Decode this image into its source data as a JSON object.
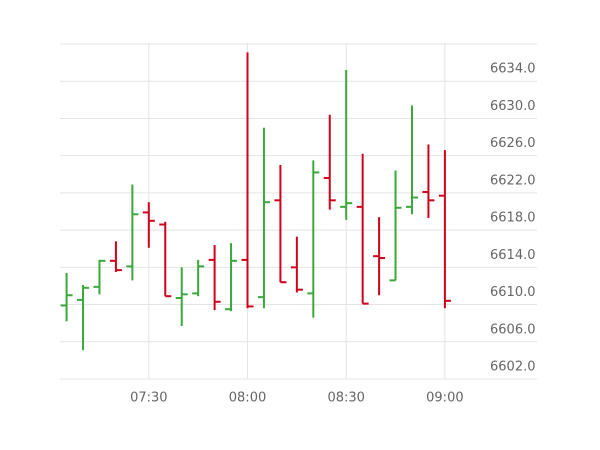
{
  "chart_data": {
    "type": "ohlc",
    "x": [
      "07:05",
      "07:10",
      "07:15",
      "07:20",
      "07:25",
      "07:30",
      "07:35",
      "07:40",
      "07:45",
      "07:50",
      "07:55",
      "08:00",
      "08:05",
      "08:10",
      "08:15",
      "08:20",
      "08:25",
      "08:30",
      "08:35",
      "08:40",
      "08:45",
      "08:50",
      "08:55",
      "09:00"
    ],
    "open": [
      6609.9,
      6610.5,
      6611.9,
      6614.7,
      6614.1,
      6619.9,
      6618.6,
      6610.7,
      6611.2,
      6614.8,
      6609.5,
      6614.8,
      6610.8,
      6621.2,
      6614.0,
      6611.2,
      6623.6,
      6620.5,
      6620.5,
      6615.2,
      6612.6,
      6620.5,
      6622.1,
      6621.7
    ],
    "high": [
      6613.4,
      6612.1,
      6614.8,
      6616.8,
      6622.9,
      6621.0,
      6618.9,
      6614.0,
      6614.8,
      6616.4,
      6616.6,
      6637.1,
      6629.0,
      6625.0,
      6617.3,
      6625.5,
      6630.4,
      6635.2,
      6626.2,
      6619.4,
      6624.4,
      6631.4,
      6627.2,
      6626.6
    ],
    "low": [
      6608.2,
      6605.1,
      6611.1,
      6613.5,
      6612.6,
      6616.1,
      6610.9,
      6607.7,
      6610.9,
      6609.4,
      6609.3,
      6609.6,
      6609.6,
      6612.4,
      6611.3,
      6608.6,
      6620.2,
      6619.1,
      6610.1,
      6611.0,
      6612.6,
      6619.7,
      6619.3,
      6609.6
    ],
    "close": [
      6611.0,
      6611.8,
      6614.7,
      6613.7,
      6619.7,
      6619.0,
      6610.9,
      6611.1,
      6614.1,
      6610.3,
      6614.7,
      6609.8,
      6621.0,
      6612.4,
      6611.6,
      6624.2,
      6621.2,
      6620.9,
      6610.1,
      6615.0,
      6620.4,
      6621.5,
      6621.2,
      6610.4
    ],
    "up_color": "#3aa83a",
    "down_color": "#d0021b",
    "xlim": [
      "07:03",
      "09:28"
    ],
    "xticks": [
      "07:30",
      "08:00",
      "08:30",
      "09:00"
    ],
    "ylim": [
      6602,
      6638
    ],
    "yticks": [
      {
        "value": 6602,
        "label": "6602.0"
      },
      {
        "value": 6606,
        "label": "6606.0"
      },
      {
        "value": 6610,
        "label": "6610.0"
      },
      {
        "value": 6614,
        "label": "6614.0"
      },
      {
        "value": 6618,
        "label": "6618.0"
      },
      {
        "value": 6622,
        "label": "6622.0"
      },
      {
        "value": 6626,
        "label": "6626.0"
      },
      {
        "value": 6630,
        "label": "6630.0"
      },
      {
        "value": 6634,
        "label": "6634.0"
      }
    ],
    "grid": true
  }
}
